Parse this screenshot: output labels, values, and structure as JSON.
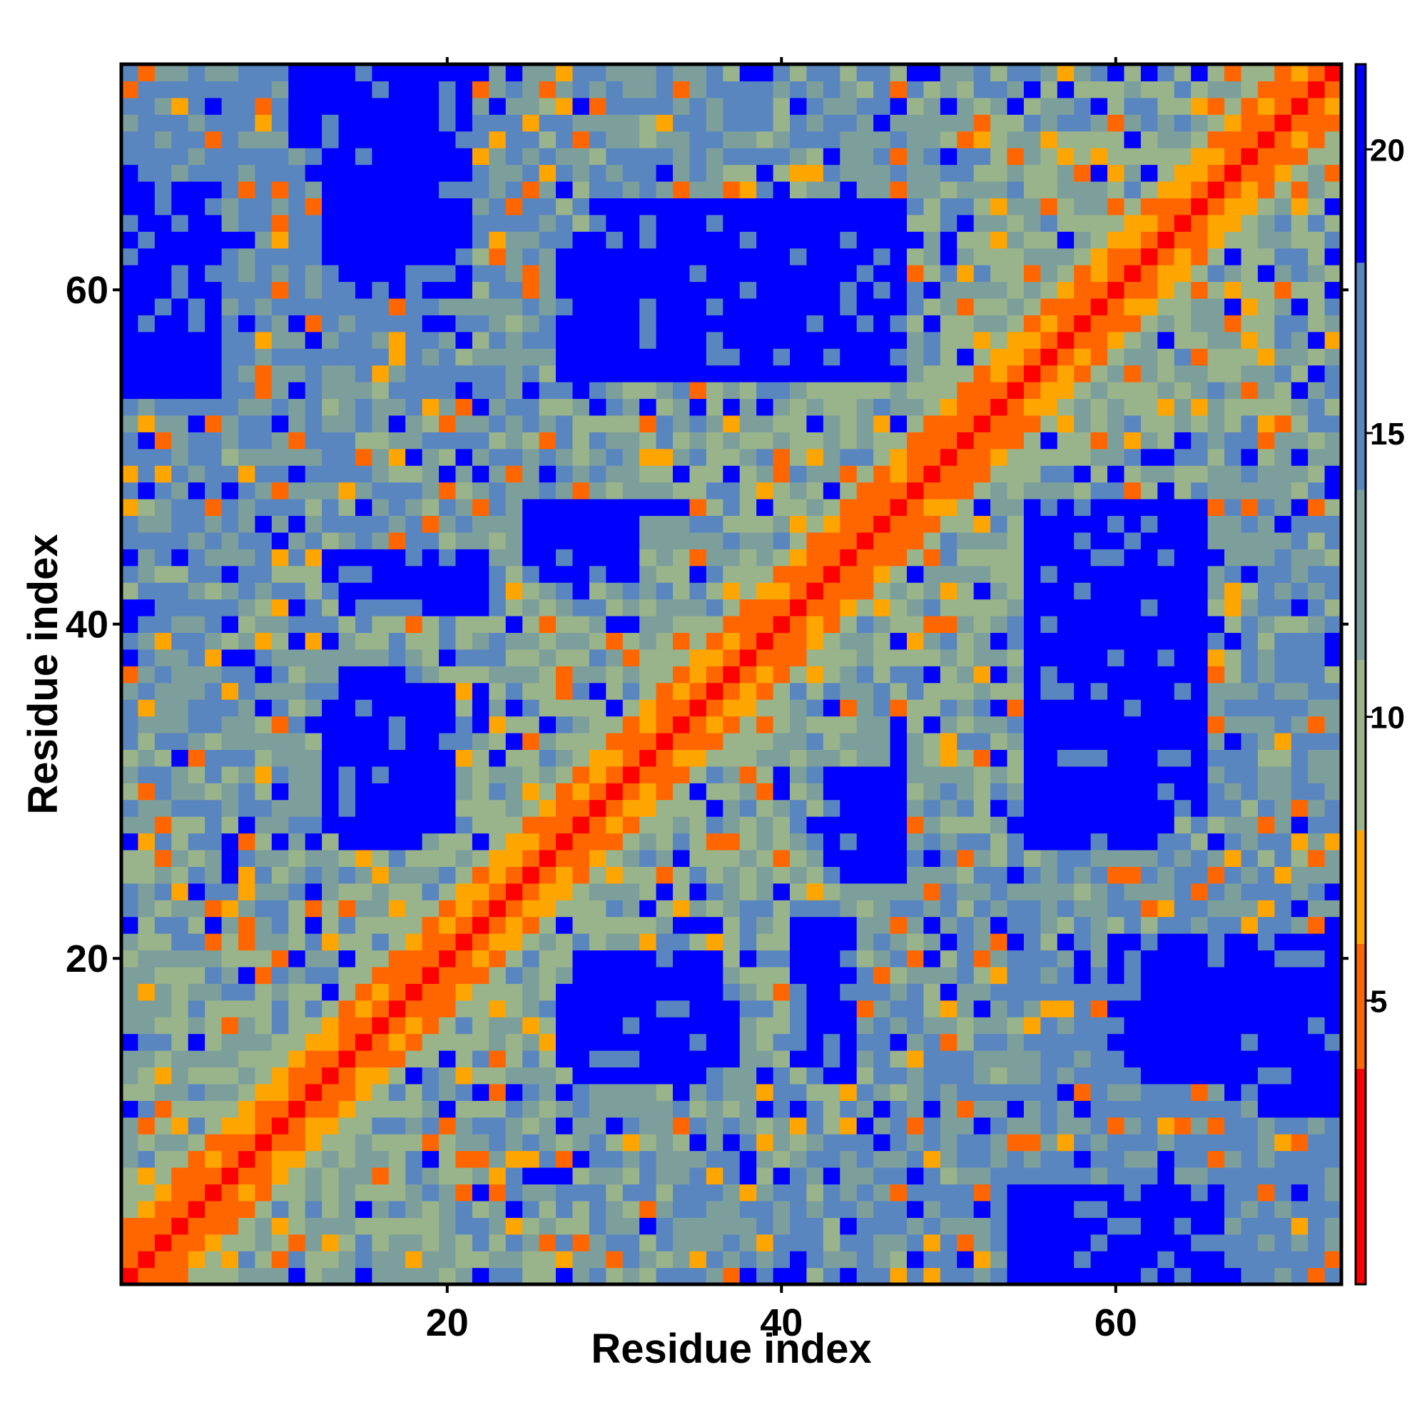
{
  "chart_data": {
    "type": "heatmap",
    "title": "",
    "xlabel": "Residue index",
    "ylabel": "Residue index",
    "n_residues": 73,
    "xlim": [
      0.5,
      73.5
    ],
    "ylim": [
      0.5,
      73.5
    ],
    "x_ticks": [
      20,
      40,
      60
    ],
    "y_ticks": [
      20,
      40,
      60
    ],
    "colorbar": {
      "min": 0,
      "max": 21.5,
      "ticks": [
        5,
        10,
        15,
        20
      ],
      "bands": [
        {
          "from": 0,
          "to": 3.8,
          "color": "#ff0000"
        },
        {
          "from": 3.8,
          "to": 6,
          "color": "#ff6600"
        },
        {
          "from": 6,
          "to": 8,
          "color": "#ffa500"
        },
        {
          "from": 8,
          "to": 11,
          "color": "#99b38a"
        },
        {
          "from": 11,
          "to": 14,
          "color": "#7d9f9c"
        },
        {
          "from": 14,
          "to": 18,
          "color": "#5a86c0"
        },
        {
          "from": 18,
          "to": 21.5,
          "color": "#0000ff"
        }
      ]
    },
    "blue_regions": [
      {
        "x": [
          27,
          47
        ],
        "y": [
          55,
          63
        ]
      },
      {
        "x": [
          13,
          21
        ],
        "y": [
          60,
          73
        ]
      },
      {
        "x": [
          1,
          5
        ],
        "y": [
          55,
          66
        ]
      },
      {
        "x": [
          14,
          18
        ],
        "y": [
          27,
          37
        ]
      },
      {
        "x": [
          28,
          36
        ],
        "y": [
          13,
          20
        ]
      },
      {
        "x": [
          58,
          65
        ],
        "y": [
          29,
          47
        ]
      },
      {
        "x": [
          54,
          66
        ],
        "y": [
          1,
          6
        ]
      },
      {
        "x": [
          69,
          73
        ],
        "y": [
          11,
          20
        ]
      },
      {
        "x": [
          43,
          47
        ],
        "y": [
          25,
          31
        ]
      },
      {
        "x": [
          25,
          30
        ],
        "y": [
          43,
          47
        ]
      },
      {
        "x": [
          14,
          22
        ],
        "y": [
          41,
          44
        ]
      }
    ]
  }
}
